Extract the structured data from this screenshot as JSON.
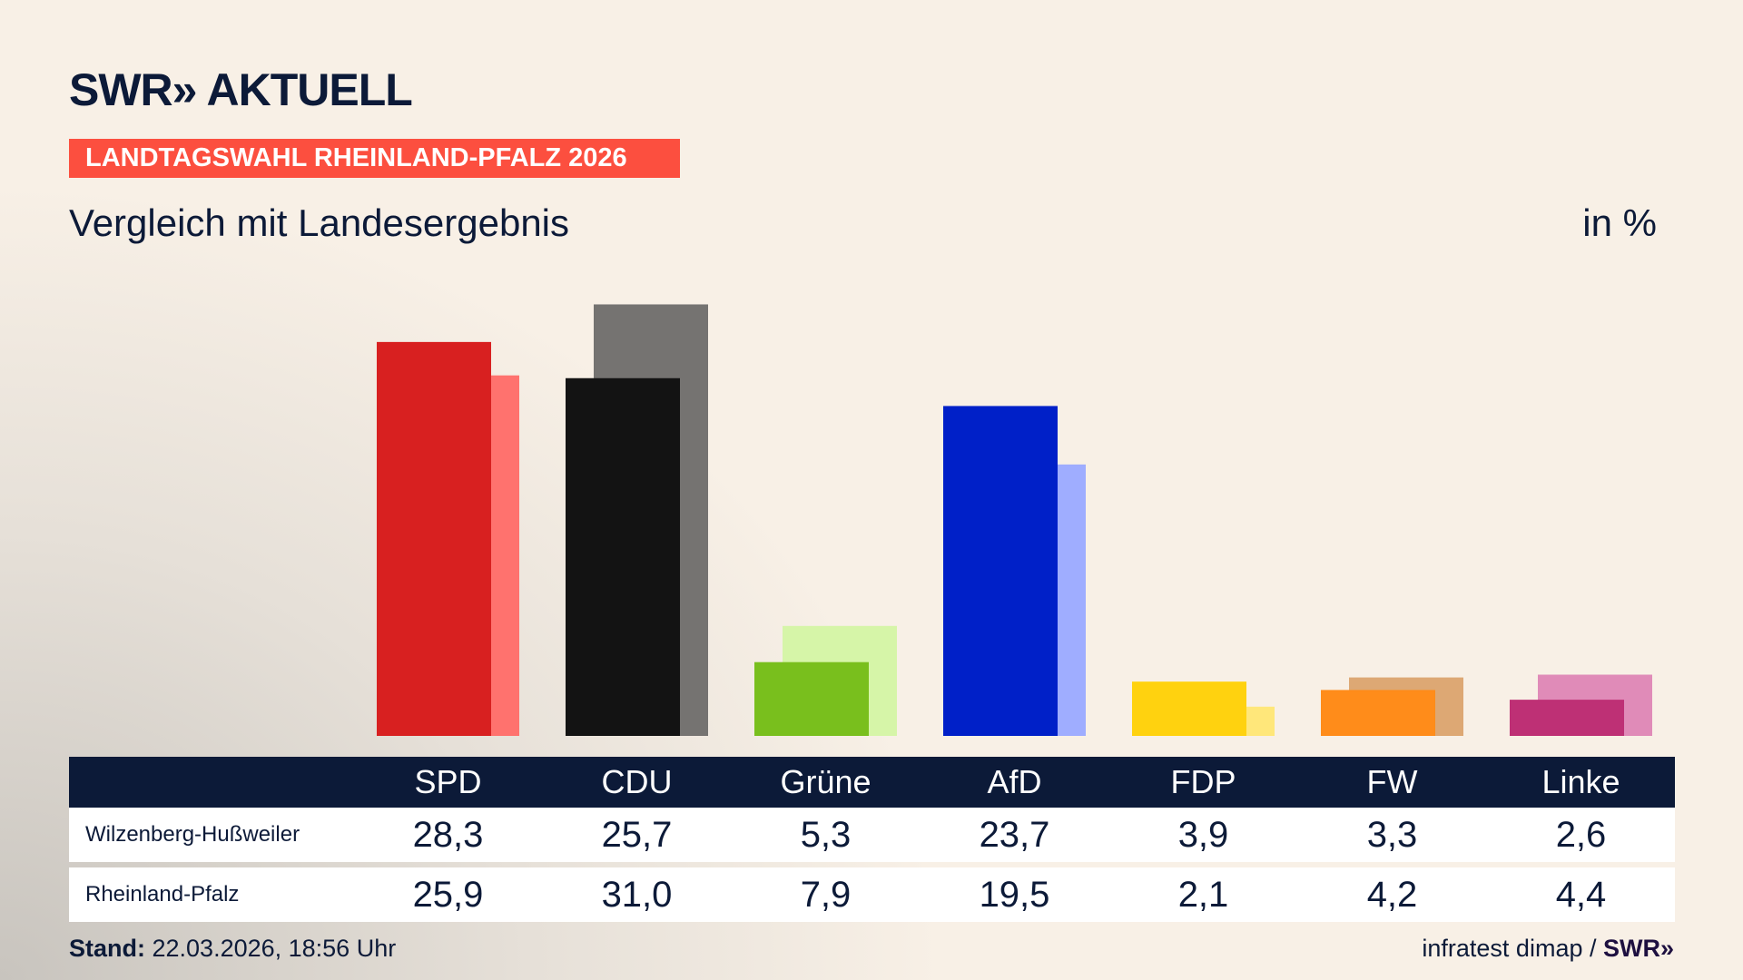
{
  "header": {
    "logo": "SWR» AKTUELL",
    "banner": "LANDTAGSWAHL RHEINLAND-PFALZ 2026",
    "subtitle": "Vergleich mit Landesergebnis",
    "unit": "in %"
  },
  "footer": {
    "stand_label": "Stand:",
    "stand_value": " 22.03.2026, 18:56 Uhr",
    "source": "infratest dimap / ",
    "source_logo": "SWR»"
  },
  "chart_data": {
    "type": "bar",
    "categories": [
      "SPD",
      "CDU",
      "Grüne",
      "AfD",
      "FDP",
      "FW",
      "Linke"
    ],
    "ylim": [
      0,
      31
    ],
    "series": [
      {
        "name": "Wilzenberg-Hußweiler",
        "values": [
          28.3,
          25.7,
          5.3,
          23.7,
          3.9,
          3.3,
          2.6
        ],
        "labels": [
          "28,3",
          "25,7",
          "5,3",
          "23,7",
          "3,9",
          "3,3",
          "2,6"
        ],
        "colors": [
          "#d82020",
          "#131313",
          "#79bf1d",
          "#0020c8",
          "#ffd20f",
          "#ff8c1a",
          "#be3075"
        ]
      },
      {
        "name": "Rheinland-Pfalz",
        "values": [
          25.9,
          31.0,
          7.9,
          19.5,
          2.1,
          4.2,
          4.4
        ],
        "labels": [
          "25,9",
          "31,0",
          "7,9",
          "19,5",
          "2,1",
          "4,2",
          "4,4"
        ],
        "colors": [
          "#ff726e",
          "#757371",
          "#d6f5a8",
          "#9fadff",
          "#ffe77a",
          "#dda874",
          "#e08bb8"
        ]
      }
    ]
  }
}
